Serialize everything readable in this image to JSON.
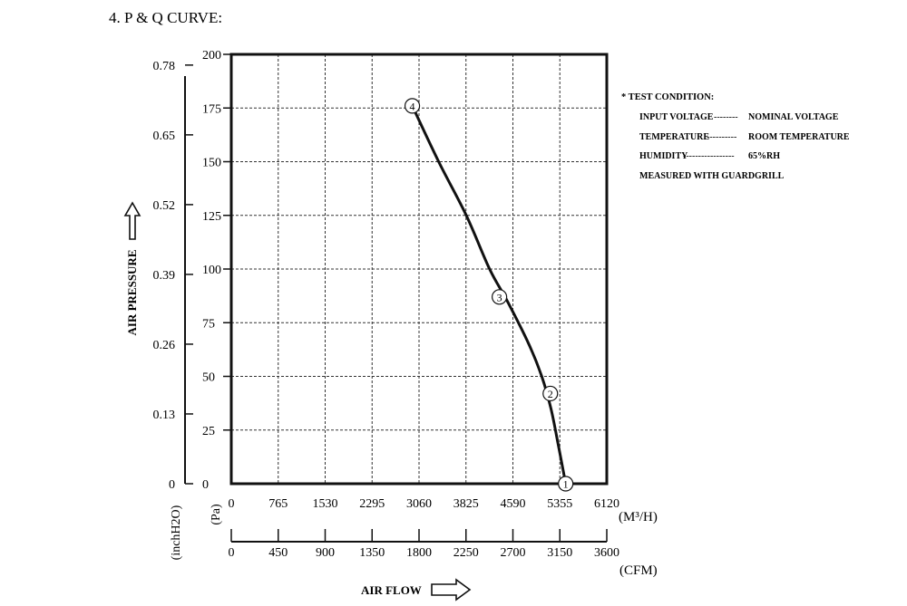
{
  "heading": "4. P & Q CURVE:",
  "colors": {
    "ink": "#111111",
    "grid": "#333333",
    "background": "#ffffff"
  },
  "test_condition": {
    "title": "* TEST CONDITION:",
    "lines": [
      {
        "label": "INPUT VOLTAGE",
        "dash": "--------",
        "value": "NOMINAL VOLTAGE"
      },
      {
        "label": "TEMPERATURE",
        "dash": "----------",
        "value": "ROOM TEMPERATURE"
      },
      {
        "label": "HUMIDITY",
        "dash": "-----------------",
        "value": "65%RH"
      }
    ],
    "note": "MEASURED WITH GUARDGRILL"
  },
  "chart_data": {
    "type": "line",
    "title": "P & Q CURVE",
    "ylabel": "AIR PRESSURE",
    "xlabel": "AIR FLOW",
    "grid": true,
    "y_axis": {
      "unit": "(Pa)",
      "range": [
        0,
        200
      ],
      "ticks": [
        0,
        25,
        50,
        75,
        100,
        125,
        150,
        175,
        200
      ],
      "tick_labels": [
        "0",
        "25",
        "50",
        "75",
        "100",
        "125",
        "150",
        "175",
        "200"
      ]
    },
    "y_axis_secondary": {
      "unit": "(inchH2O)",
      "ticks": [
        0,
        0.13,
        0.26,
        0.39,
        0.52,
        0.65,
        0.78
      ],
      "tick_labels": [
        "0",
        "0.13",
        "0.26",
        "0.39",
        "0.52",
        "0.65",
        "0.78"
      ]
    },
    "x_axis": {
      "unit": "(M³/H)",
      "range": [
        0,
        6120
      ],
      "ticks": [
        0,
        765,
        1530,
        2295,
        3060,
        3825,
        4590,
        5355,
        6120
      ],
      "tick_labels": [
        "0",
        "765",
        "1530",
        "2295",
        "3060",
        "3825",
        "4590",
        "5355",
        "6120"
      ]
    },
    "x_axis_secondary": {
      "unit": "(CFM)",
      "range": [
        0,
        3600
      ],
      "ticks": [
        0,
        450,
        900,
        1350,
        1800,
        2250,
        2700,
        3150,
        3600
      ],
      "tick_labels": [
        "0",
        "450",
        "900",
        "1350",
        "1800",
        "2250",
        "2700",
        "3150",
        "3600"
      ]
    },
    "series": [
      {
        "points": [
          {
            "x": 2950,
            "y": 176
          },
          {
            "x": 3380,
            "y": 150
          },
          {
            "x": 3830,
            "y": 125
          },
          {
            "x": 4210,
            "y": 100
          },
          {
            "x": 4500,
            "y": 85
          },
          {
            "x": 4850,
            "y": 65
          },
          {
            "x": 5060,
            "y": 50
          },
          {
            "x": 5210,
            "y": 35
          },
          {
            "x": 5330,
            "y": 18
          },
          {
            "x": 5450,
            "y": 0
          }
        ],
        "markers": [
          {
            "label": "1",
            "x": 5450,
            "y": 0
          },
          {
            "label": "2",
            "x": 5200,
            "y": 42
          },
          {
            "label": "3",
            "x": 4370,
            "y": 87
          },
          {
            "label": "4",
            "x": 2950,
            "y": 176
          }
        ]
      }
    ]
  }
}
